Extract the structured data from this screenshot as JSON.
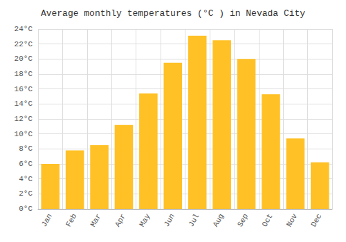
{
  "chart_data": {
    "type": "bar",
    "title": "Average monthly temperatures (°C ) in Nevada City",
    "categories": [
      "Jan",
      "Feb",
      "Mar",
      "Apr",
      "May",
      "Jun",
      "Jul",
      "Aug",
      "Sep",
      "Oct",
      "Nov",
      "Dec"
    ],
    "values": [
      6.0,
      7.8,
      8.5,
      11.2,
      15.4,
      19.5,
      23.1,
      22.5,
      20.0,
      15.3,
      9.4,
      6.2
    ],
    "color": "#FFC125",
    "ylim": [
      0,
      24
    ],
    "yticks": [
      {
        "value": 0,
        "label": "0°C"
      },
      {
        "value": 2,
        "label": "2°C"
      },
      {
        "value": 4,
        "label": "4°C"
      },
      {
        "value": 6,
        "label": "6°C"
      },
      {
        "value": 8,
        "label": "8°C"
      },
      {
        "value": 10,
        "label": "10°C"
      },
      {
        "value": 12,
        "label": "12°C"
      },
      {
        "value": 14,
        "label": "14°C"
      },
      {
        "value": 16,
        "label": "16°C"
      },
      {
        "value": 18,
        "label": "18°C"
      },
      {
        "value": 20,
        "label": "20°C"
      },
      {
        "value": 22,
        "label": "22°C"
      },
      {
        "value": 24,
        "label": "24°C"
      }
    ],
    "grid": true
  }
}
